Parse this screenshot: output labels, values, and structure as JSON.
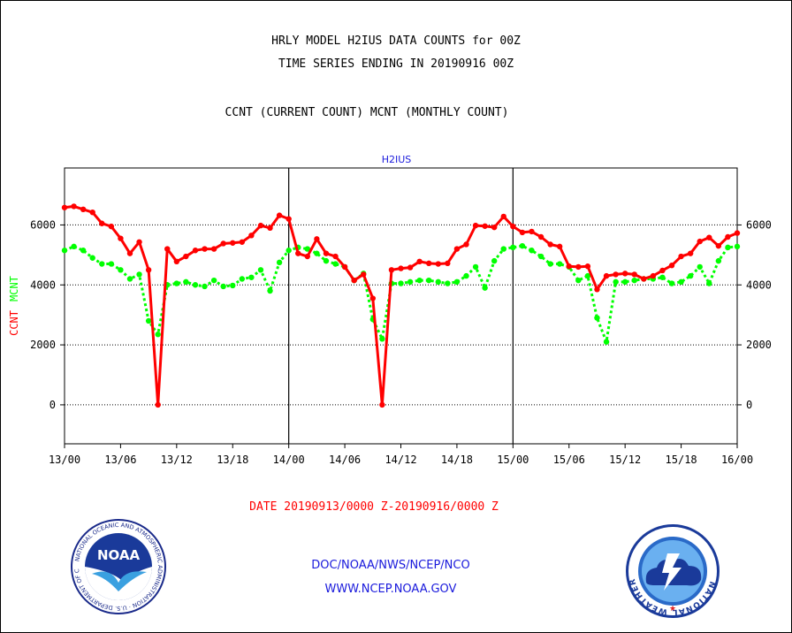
{
  "header": {
    "title_line1": "HRLY MODEL H2IUS DATA COUNTS for 00Z",
    "title_line2": "TIME SERIES ENDING IN 20190916 00Z",
    "subtitle": "CCNT (CURRENT COUNT) MCNT (MONTHLY COUNT)"
  },
  "footer": {
    "date_range": "DATE 20190913/0000 Z-20190916/0000 Z",
    "org": "DOC/NOAA/NWS/NCEP/NCO",
    "url": "WWW.NCEP.NOAA.GOV"
  },
  "logos": {
    "left_text": "NOAA",
    "left_ring_text": "NATIONAL OCEANIC AND ATMOSPHERIC ADMINISTRATION · U.S. DEPARTMENT OF COMMERCE",
    "right_ring_text": "NATIONAL WEATHER SERVICE"
  },
  "chart_data": {
    "type": "line",
    "title": "H2IUS",
    "ylabel_left_parts": [
      "CCNT",
      "MCNT"
    ],
    "x_tick_labels": [
      "13/00",
      "13/06",
      "13/12",
      "13/18",
      "14/00",
      "14/06",
      "14/12",
      "14/18",
      "15/00",
      "15/06",
      "15/12",
      "15/18",
      "16/00"
    ],
    "x_range_hours": [
      0,
      72
    ],
    "ylim": [
      -1300,
      7900
    ],
    "y_ticks": [
      0,
      2000,
      4000,
      6000
    ],
    "y_tick_labels": [
      "0",
      "2000",
      "4000",
      "6000"
    ],
    "day_dividers_hours": [
      24,
      48
    ],
    "grid": "horizontal dotted at y ticks",
    "colors": {
      "ccnt": "#ff0000",
      "mcnt": "#00ff00",
      "title": "#1a1adc"
    },
    "series": [
      {
        "name": "CCNT",
        "style": "solid",
        "values": [
          6580,
          6620,
          6520,
          6420,
          6050,
          5950,
          5550,
          5050,
          5430,
          4500,
          0,
          5200,
          4780,
          4950,
          5150,
          5200,
          5200,
          5380,
          5400,
          5430,
          5650,
          5980,
          5900,
          6320,
          6200,
          5050,
          4950,
          5530,
          5050,
          4950,
          4600,
          4150,
          4350,
          3550,
          0,
          4500,
          4550,
          4580,
          4780,
          4720,
          4700,
          4720,
          5200,
          5350,
          5980,
          5960,
          5920,
          6280,
          5950,
          5750,
          5780,
          5600,
          5350,
          5280,
          4620,
          4600,
          4620,
          3850,
          4300,
          4350,
          4380,
          4350,
          4200,
          4300,
          4480,
          4650,
          4950,
          5050,
          5450,
          5580,
          5300,
          5600,
          5730
        ]
      },
      {
        "name": "MCNT",
        "style": "dotted",
        "values": [
          5150,
          5280,
          5150,
          4900,
          4700,
          4700,
          4500,
          4200,
          4350,
          2800,
          2350,
          4000,
          4050,
          4100,
          4000,
          3950,
          4150,
          3950,
          3980,
          4200,
          4250,
          4500,
          3800,
          4750,
          5150,
          5250,
          5200,
          5050,
          4800,
          4700,
          4600,
          4150,
          4380,
          2850,
          2200,
          4050,
          4050,
          4100,
          4150,
          4150,
          4100,
          4050,
          4100,
          4300,
          4600,
          3900,
          4800,
          5200,
          5250,
          5300,
          5150,
          4950,
          4700,
          4700,
          4600,
          4150,
          4300,
          2900,
          2100,
          4100,
          4100,
          4150,
          4200,
          4200,
          4250,
          4050,
          4100,
          4300,
          4600,
          4050,
          4800,
          5250,
          5280
        ]
      }
    ]
  }
}
